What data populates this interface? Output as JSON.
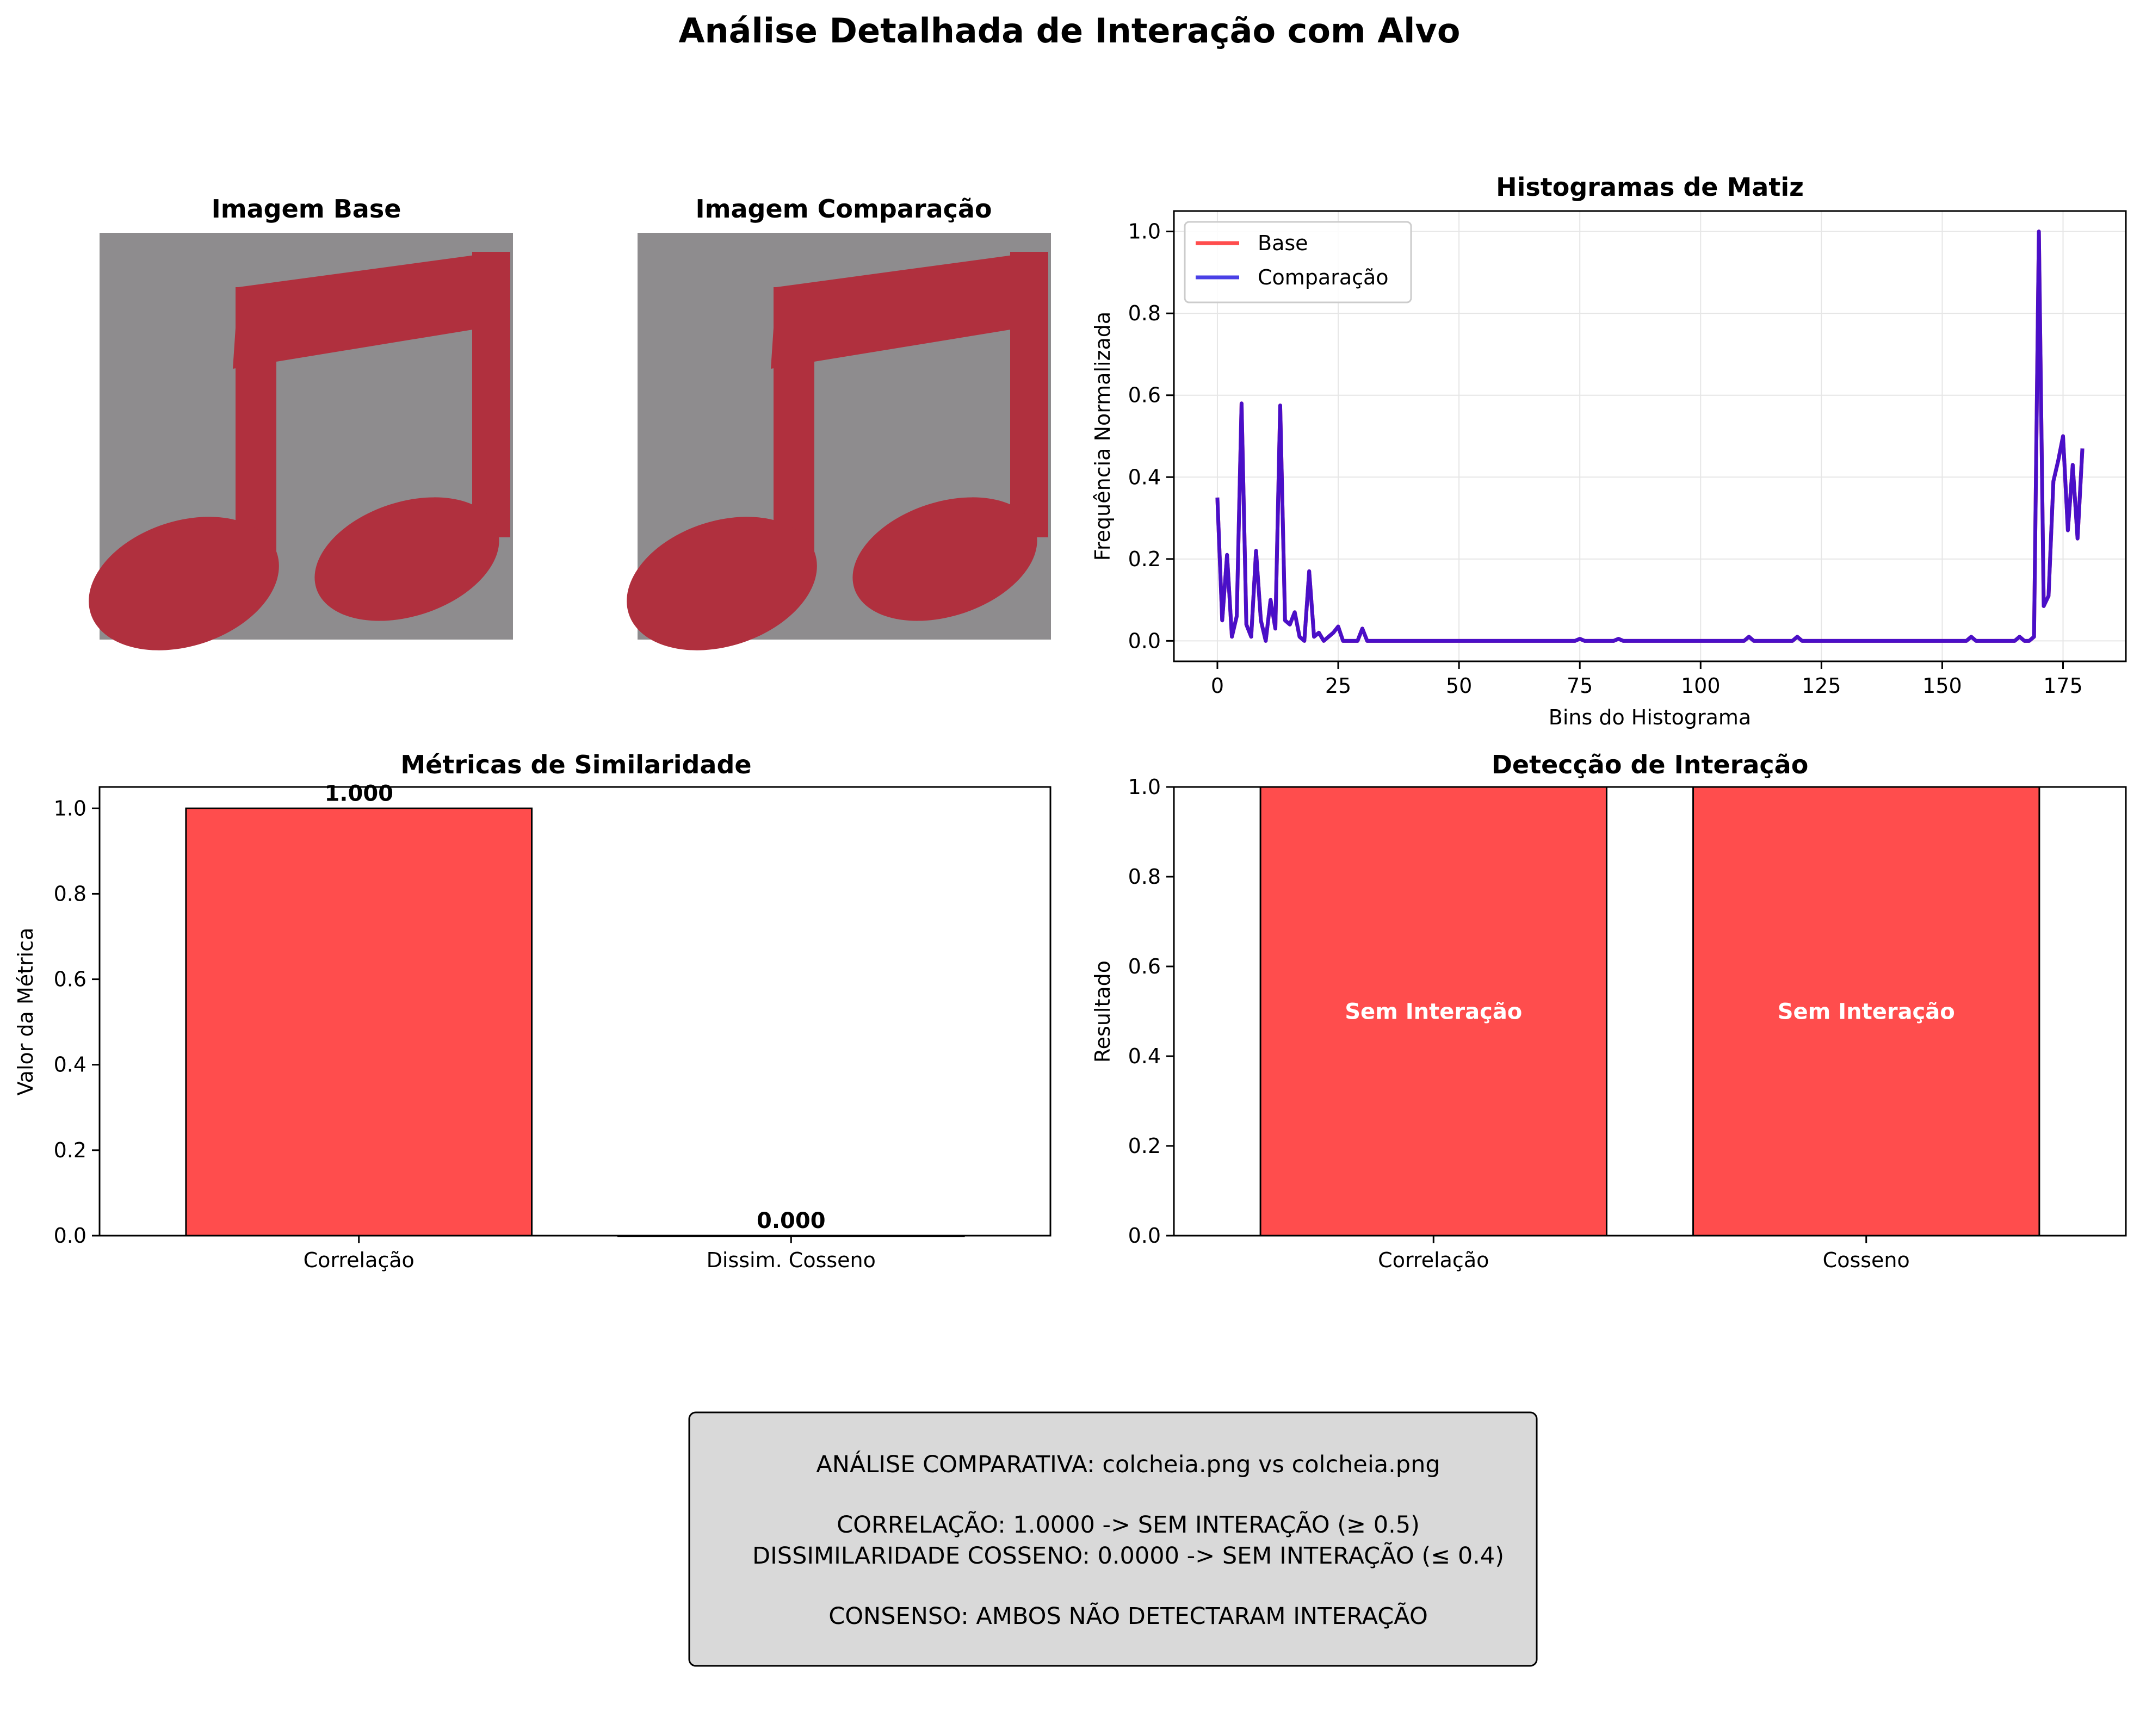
{
  "title": "Análise Detalhada de Interação com Alvo",
  "images": [
    {
      "title": "Imagem Base"
    },
    {
      "title": "Imagem Comparação"
    }
  ],
  "colors": {
    "base_line": "#ff4d4d",
    "comp_line": "#4a40e6",
    "overlap_line": "#4a0fc8",
    "bar_fill": "#ff4d4d",
    "box_fill": "#d9d9d9",
    "note_background": "#8e8c8e",
    "note_color": "#b0303e"
  },
  "chart_data": [
    {
      "type": "line",
      "title": "Histogramas de Matiz",
      "xlabel": "Bins do Histograma",
      "ylabel": "Frequência Normalizada",
      "xlim": [
        -9,
        188
      ],
      "ylim": [
        -0.05,
        1.05
      ],
      "xticks": [
        0,
        25,
        50,
        75,
        100,
        125,
        150,
        175
      ],
      "yticks": [
        0.0,
        0.2,
        0.4,
        0.6,
        0.8,
        1.0
      ],
      "grid": true,
      "legend": "top-left",
      "series": [
        {
          "name": "Base",
          "x": [
            0,
            1,
            2,
            3,
            4,
            5,
            6,
            7,
            8,
            9,
            10,
            11,
            12,
            13,
            14,
            15,
            16,
            17,
            18,
            19,
            20,
            21,
            22,
            23,
            24,
            25,
            26,
            27,
            28,
            29,
            30,
            31,
            40,
            60,
            74,
            75,
            76,
            80,
            82,
            83,
            84,
            108,
            109,
            110,
            111,
            118,
            119,
            120,
            121,
            150,
            155,
            156,
            157,
            165,
            166,
            167,
            168,
            169,
            170,
            171,
            172,
            173,
            174,
            175,
            176,
            177,
            178,
            179
          ],
          "values": [
            0.35,
            0.05,
            0.21,
            0.01,
            0.06,
            0.58,
            0.04,
            0.01,
            0.22,
            0.05,
            0.0,
            0.1,
            0.03,
            0.575,
            0.05,
            0.04,
            0.07,
            0.01,
            0.0,
            0.17,
            0.01,
            0.02,
            0.0,
            0.01,
            0.02,
            0.035,
            0.0,
            0.0,
            0.0,
            0.0,
            0.03,
            0.0,
            0.0,
            0.0,
            0.0,
            0.005,
            0.0,
            0.0,
            0.0,
            0.005,
            0.0,
            0.0,
            0.0,
            0.01,
            0.0,
            0.0,
            0.0,
            0.01,
            0.0,
            0.0,
            0.0,
            0.01,
            0.0,
            0.0,
            0.01,
            0.0,
            0.0,
            0.01,
            1.0,
            0.085,
            0.11,
            0.39,
            0.44,
            0.5,
            0.27,
            0.43,
            0.25,
            0.47
          ]
        },
        {
          "name": "Comparação",
          "x": [
            0,
            1,
            2,
            3,
            4,
            5,
            6,
            7,
            8,
            9,
            10,
            11,
            12,
            13,
            14,
            15,
            16,
            17,
            18,
            19,
            20,
            21,
            22,
            23,
            24,
            25,
            26,
            27,
            28,
            29,
            30,
            31,
            40,
            60,
            74,
            75,
            76,
            80,
            82,
            83,
            84,
            108,
            109,
            110,
            111,
            118,
            119,
            120,
            121,
            150,
            155,
            156,
            157,
            165,
            166,
            167,
            168,
            169,
            170,
            171,
            172,
            173,
            174,
            175,
            176,
            177,
            178,
            179
          ],
          "values": [
            0.35,
            0.05,
            0.21,
            0.01,
            0.06,
            0.58,
            0.04,
            0.01,
            0.22,
            0.05,
            0.0,
            0.1,
            0.03,
            0.575,
            0.05,
            0.04,
            0.07,
            0.01,
            0.0,
            0.17,
            0.01,
            0.02,
            0.0,
            0.01,
            0.02,
            0.035,
            0.0,
            0.0,
            0.0,
            0.0,
            0.03,
            0.0,
            0.0,
            0.0,
            0.0,
            0.005,
            0.0,
            0.0,
            0.0,
            0.005,
            0.0,
            0.0,
            0.0,
            0.01,
            0.0,
            0.0,
            0.0,
            0.01,
            0.0,
            0.0,
            0.0,
            0.01,
            0.0,
            0.0,
            0.01,
            0.0,
            0.0,
            0.01,
            1.0,
            0.085,
            0.11,
            0.39,
            0.44,
            0.5,
            0.27,
            0.43,
            0.25,
            0.47
          ]
        }
      ]
    },
    {
      "type": "bar",
      "title": "Métricas de Similaridade",
      "xlabel": "",
      "ylabel": "Valor da Métrica",
      "categories": [
        "Correlação",
        "Dissim. Cosseno"
      ],
      "values": [
        1.0,
        0.0
      ],
      "data_labels": [
        "1.000",
        "0.000"
      ],
      "ylim": [
        0,
        1.05
      ],
      "yticks": [
        0.0,
        0.2,
        0.4,
        0.6,
        0.8,
        1.0
      ],
      "grid": false
    },
    {
      "type": "bar",
      "title": "Detecção de Interação",
      "xlabel": "",
      "ylabel": "Resultado",
      "categories": [
        "Correlação",
        "Cosseno"
      ],
      "values": [
        1,
        1
      ],
      "data_labels": [
        "Sem Interação",
        "Sem Interação"
      ],
      "ylim": [
        0,
        1
      ],
      "yticks": [
        0.0,
        0.2,
        0.4,
        0.6,
        0.8,
        1.0
      ],
      "grid": false
    }
  ],
  "summary": {
    "lines": [
      "ANÁLISE COMPARATIVA: colcheia.png vs colcheia.png",
      "",
      "CORRELAÇÃO: 1.0000 -> SEM INTERAÇÃO (≥ 0.5)",
      "DISSIMILARIDADE COSSENO: 0.0000 -> SEM INTERAÇÃO (≤ 0.4)",
      "",
      "CONSENSO: AMBOS NÃO DETECTARAM INTERAÇÃO"
    ]
  }
}
